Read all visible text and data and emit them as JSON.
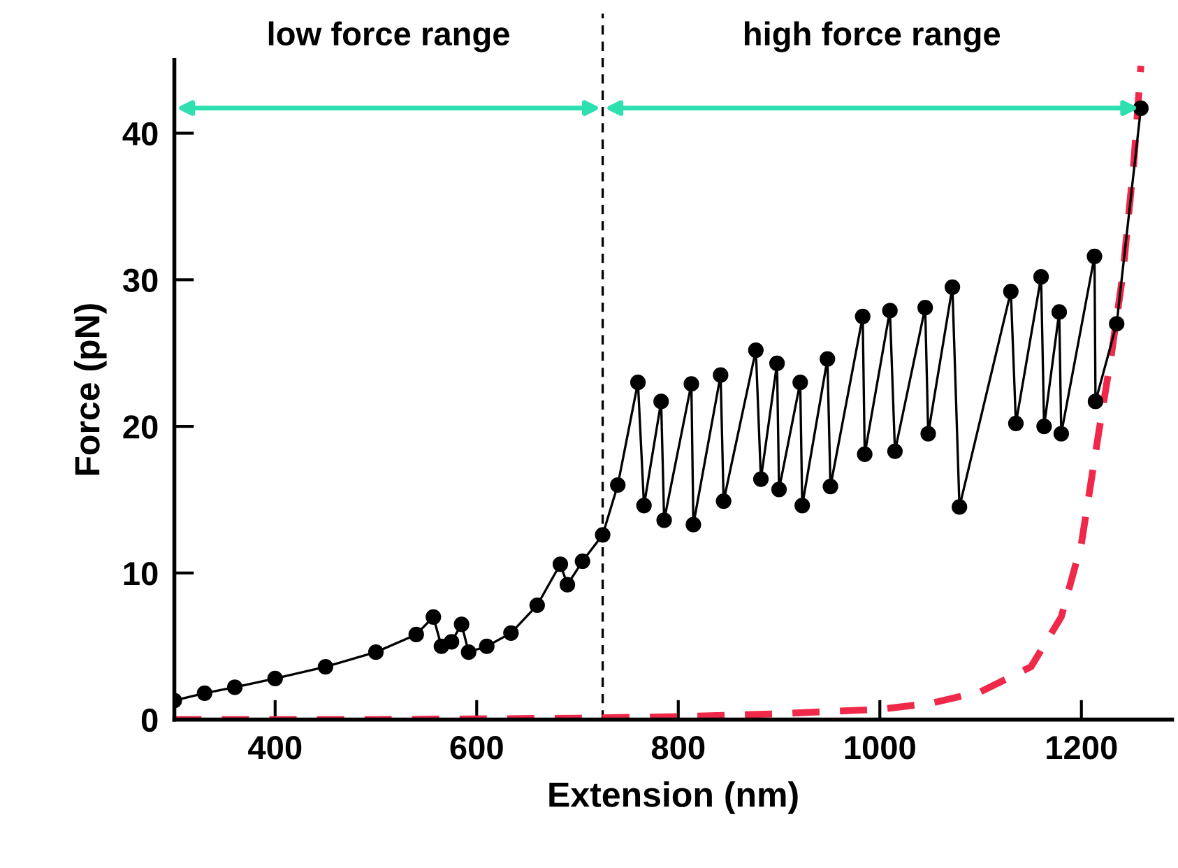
{
  "chart_data": {
    "type": "line",
    "xlabel": "Extension (nm)",
    "ylabel": "Force (pN)",
    "xlim": [
      300,
      1290
    ],
    "xticks": [
      400,
      600,
      800,
      1000,
      1200
    ],
    "ylim": [
      0,
      45
    ],
    "yticks": [
      0,
      10,
      20,
      30,
      40
    ],
    "grid": false,
    "series": [
      {
        "color": "#000000",
        "marker": "circle",
        "line_style": "solid",
        "x": [
          300,
          330,
          360,
          400,
          450,
          500,
          540,
          557,
          565,
          575,
          585,
          592,
          610,
          634,
          660,
          683,
          690,
          705,
          725,
          740,
          760,
          766,
          783,
          786,
          813,
          815,
          842,
          845,
          877,
          882,
          898,
          900,
          921,
          923,
          948,
          951,
          983,
          985,
          1010,
          1015,
          1045,
          1048,
          1072,
          1079,
          1130,
          1135,
          1160,
          1163,
          1178,
          1180,
          1213,
          1214,
          1235,
          1259
        ],
        "values": [
          1.3,
          1.8,
          2.2,
          2.8,
          3.6,
          4.6,
          5.8,
          7.0,
          5.0,
          5.3,
          6.5,
          4.6,
          5.0,
          5.9,
          7.8,
          10.6,
          9.2,
          10.8,
          12.6,
          16.0,
          23.0,
          14.6,
          21.7,
          13.6,
          22.9,
          13.3,
          23.5,
          14.9,
          25.2,
          16.4,
          24.3,
          15.7,
          23.0,
          14.6,
          24.6,
          15.9,
          27.5,
          18.1,
          27.9,
          18.3,
          28.1,
          19.5,
          29.5,
          14.5,
          29.2,
          20.2,
          30.2,
          20.0,
          27.8,
          19.5,
          31.6,
          21.7,
          27.0,
          41.7
        ]
      },
      {
        "color": "#f0284a",
        "marker": "none",
        "line_style": "dashed",
        "x": [
          300,
          500,
          700,
          800,
          900,
          1000,
          1050,
          1100,
          1150,
          1180,
          1200,
          1217,
          1230,
          1241,
          1252,
          1259
        ],
        "values": [
          0,
          0,
          0.1,
          0.2,
          0.4,
          0.7,
          1.1,
          1.9,
          3.6,
          7.0,
          12.0,
          19.5,
          25.0,
          30.3,
          38.0,
          44.6
        ]
      }
    ],
    "ref_lines": [
      {
        "axis": "x",
        "value": 725,
        "line_style": "dashed",
        "color": "#000000"
      }
    ],
    "annotations": [
      "low force range",
      "high force range"
    ]
  }
}
